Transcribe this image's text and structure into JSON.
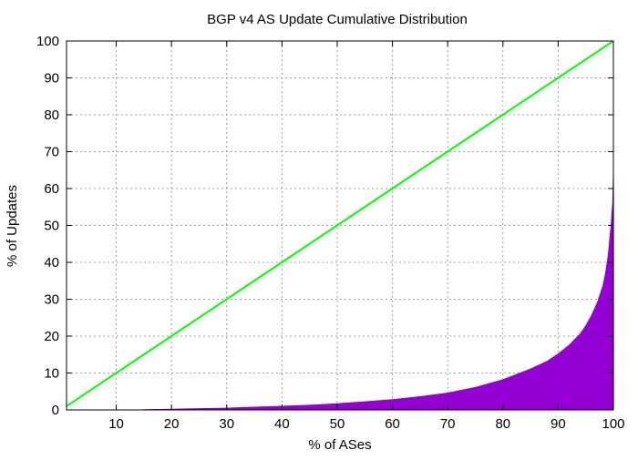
{
  "chart_data": {
    "type": "area",
    "title": "BGP v4 AS Update Cumulative Distribution",
    "xlabel": "% of ASes",
    "ylabel": "% of Updates",
    "xlim": [
      1,
      100
    ],
    "ylim": [
      0,
      100
    ],
    "xticks": [
      10,
      20,
      30,
      40,
      50,
      60,
      70,
      80,
      90,
      100
    ],
    "yticks": [
      0,
      10,
      20,
      30,
      40,
      50,
      60,
      70,
      80,
      90,
      100
    ],
    "grid": true,
    "series": [
      {
        "style": "filled-area",
        "color": "#9400d3",
        "x": [
          15,
          20,
          25,
          30,
          35,
          40,
          45,
          50,
          55,
          60,
          65,
          70,
          75,
          80,
          85,
          88,
          90,
          92,
          94,
          95,
          96,
          97,
          98,
          98.5,
          99,
          99.5,
          99.8,
          100
        ],
        "y": [
          0.2,
          0.3,
          0.45,
          0.6,
          0.85,
          1.1,
          1.4,
          1.8,
          2.3,
          2.9,
          3.7,
          4.7,
          6.2,
          8.3,
          11.2,
          13.3,
          15.3,
          17.7,
          20.8,
          23,
          25.7,
          29,
          33.5,
          37,
          42,
          50,
          56,
          69
        ]
      },
      {
        "style": "line",
        "color": "#00ff00",
        "x": [
          1,
          100
        ],
        "y": [
          1,
          100
        ]
      }
    ]
  }
}
